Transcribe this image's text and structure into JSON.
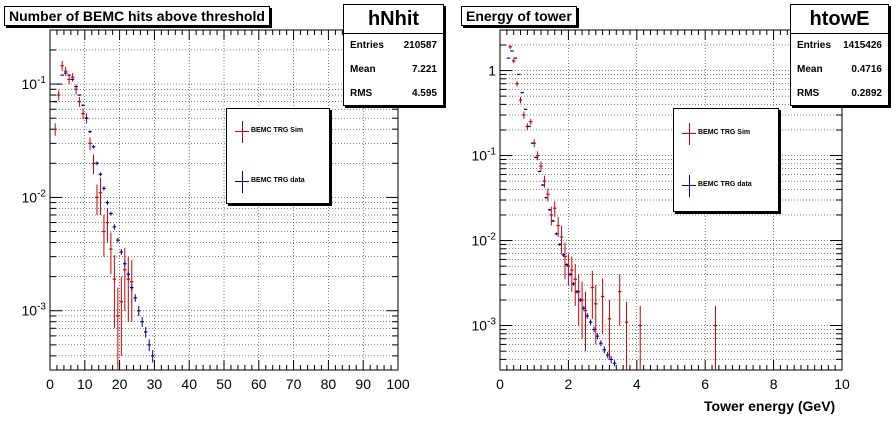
{
  "chart_data": [
    {
      "type": "scatter",
      "title": "Number of BEMC hits above threshold",
      "stats": {
        "name": "hNhit",
        "rows": [
          [
            "Entries",
            "210587"
          ],
          [
            "Mean",
            "7.221"
          ],
          [
            "RMS",
            "4.595"
          ]
        ]
      },
      "xlabel": "",
      "ylabel": "",
      "xlim": [
        0,
        100
      ],
      "ylim": [
        0.0003,
        0.3
      ],
      "yscale": "log",
      "grid": true,
      "x_ticks": [
        "0",
        "10",
        "20",
        "30",
        "40",
        "50",
        "60",
        "70",
        "80",
        "90",
        "100"
      ],
      "y_ticks": [
        "10^-3",
        "10^-2",
        "10^-1"
      ],
      "legend": {
        "placement": "center-right",
        "entries": [
          "BEMC TRG Sim",
          "BEMC TRG data"
        ]
      },
      "series": [
        {
          "name": "BEMC TRG Sim",
          "color": "#cc0000",
          "points": [
            [
              1.5,
              0.04,
              0.005
            ],
            [
              2.5,
              0.08,
              0.008
            ],
            [
              3.5,
              0.145,
              0.015
            ],
            [
              4.5,
              0.13,
              0.012
            ],
            [
              5.5,
              0.11,
              0.01
            ],
            [
              6.5,
              0.115,
              0.01
            ],
            [
              7.5,
              0.09,
              0.009
            ],
            [
              8.5,
              0.07,
              0.007
            ],
            [
              9.5,
              0.055,
              0.006
            ],
            [
              10.5,
              0.05,
              0.005
            ],
            [
              11.5,
              0.03,
              0.004
            ],
            [
              12.5,
              0.02,
              0.004
            ],
            [
              13.5,
              0.01,
              0.003
            ],
            [
              14.5,
              0.011,
              0.004
            ],
            [
              15.5,
              0.005,
              0.002
            ],
            [
              16.5,
              0.006,
              0.002
            ],
            [
              17.5,
              0.0035,
              0.0014
            ],
            [
              18.5,
              0.0019,
              0.0012
            ],
            [
              19.5,
              0.0009,
              0.0007
            ],
            [
              20.5,
              0.0012,
              0.0008
            ],
            [
              21.5,
              0.0023,
              0.0013
            ],
            [
              22.5,
              0.0019,
              0.0011
            ],
            [
              23.5,
              0.0018,
              0.001
            ]
          ]
        },
        {
          "name": "BEMC TRG data",
          "color": "#000099",
          "points": [
            [
              1.5,
              0.07,
              0.001
            ],
            [
              2.5,
              0.1,
              0.001
            ],
            [
              3.5,
              0.12,
              0.001
            ],
            [
              4.5,
              0.125,
              0.001
            ],
            [
              5.5,
              0.12,
              0.001
            ],
            [
              6.5,
              0.11,
              0.001
            ],
            [
              7.5,
              0.095,
              0.001
            ],
            [
              8.5,
              0.08,
              0.001
            ],
            [
              9.5,
              0.065,
              0.001
            ],
            [
              10.5,
              0.05,
              0.001
            ],
            [
              11.5,
              0.038,
              0.001
            ],
            [
              12.5,
              0.028,
              0.001
            ],
            [
              13.5,
              0.02,
              0.0008
            ],
            [
              14.5,
              0.016,
              0.0006
            ],
            [
              15.5,
              0.012,
              0.0005
            ],
            [
              16.5,
              0.009,
              0.0004
            ],
            [
              17.5,
              0.0072,
              0.0003
            ],
            [
              18.5,
              0.0055,
              0.0003
            ],
            [
              19.5,
              0.0042,
              0.0002
            ],
            [
              20.5,
              0.0033,
              0.0002
            ],
            [
              21.5,
              0.0026,
              0.00015
            ],
            [
              22.5,
              0.0021,
              0.00012
            ],
            [
              23.5,
              0.0016,
              0.0001
            ],
            [
              24.5,
              0.0013,
              0.0001
            ],
            [
              25.5,
              0.001,
              0.0001
            ],
            [
              26.5,
              0.0008,
              8e-05
            ],
            [
              27.5,
              0.00065,
              7e-05
            ],
            [
              28.5,
              0.0005,
              6e-05
            ],
            [
              29.5,
              0.0004,
              5e-05
            ]
          ]
        }
      ]
    },
    {
      "type": "scatter",
      "title": "Energy of tower",
      "stats": {
        "name": "htowE",
        "rows": [
          [
            "Entries",
            "1415426"
          ],
          [
            "Mean",
            "0.4716"
          ],
          [
            "RMS",
            "0.2892"
          ]
        ]
      },
      "xlabel": "Tower energy (GeV)",
      "ylabel": "",
      "xlim": [
        0,
        10
      ],
      "ylim": [
        0.0003,
        3
      ],
      "yscale": "log",
      "grid": true,
      "x_ticks": [
        "0",
        "2",
        "4",
        "6",
        "8",
        "10"
      ],
      "y_ticks": [
        "10^-3",
        "10^-2",
        "10^-1",
        "1"
      ],
      "legend": {
        "placement": "center-right",
        "entries": [
          "BEMC TRG Sim",
          "BEMC TRG data"
        ]
      },
      "series": [
        {
          "name": "BEMC TRG Sim",
          "color": "#cc0000",
          "points": [
            [
              0.3,
              1.9,
              0.1
            ],
            [
              0.4,
              1.3,
              0.08
            ],
            [
              0.5,
              0.7,
              0.05
            ],
            [
              0.6,
              0.45,
              0.04
            ],
            [
              0.7,
              0.3,
              0.03
            ],
            [
              0.8,
              0.22,
              0.02
            ],
            [
              0.9,
              0.25,
              0.02
            ],
            [
              1.0,
              0.14,
              0.015
            ],
            [
              1.1,
              0.1,
              0.012
            ],
            [
              1.2,
              0.075,
              0.01
            ],
            [
              1.3,
              0.05,
              0.008
            ],
            [
              1.4,
              0.035,
              0.006
            ],
            [
              1.5,
              0.02,
              0.005
            ],
            [
              1.6,
              0.024,
              0.005
            ],
            [
              1.7,
              0.015,
              0.004
            ],
            [
              1.8,
              0.011,
              0.004
            ],
            [
              1.9,
              0.0065,
              0.003
            ],
            [
              2.0,
              0.005,
              0.002
            ],
            [
              2.1,
              0.0045,
              0.002
            ],
            [
              2.2,
              0.0035,
              0.0018
            ],
            [
              2.3,
              0.0025,
              0.0015
            ],
            [
              2.4,
              0.002,
              0.0013
            ],
            [
              2.5,
              0.0015,
              0.001
            ],
            [
              2.7,
              0.0028,
              0.0016
            ],
            [
              2.8,
              0.0018,
              0.0012
            ],
            [
              3.0,
              0.0022,
              0.0014
            ],
            [
              3.2,
              0.0012,
              0.0008
            ],
            [
              3.5,
              0.0025,
              0.0015
            ],
            [
              3.7,
              0.0011,
              0.0008
            ],
            [
              4.1,
              0.001,
              0.0007
            ],
            [
              6.3,
              0.001,
              0.0007
            ]
          ]
        },
        {
          "name": "BEMC TRG data",
          "color": "#000099",
          "points": [
            [
              0.25,
              1.4,
              0.01
            ],
            [
              0.35,
              1.7,
              0.01
            ],
            [
              0.45,
              1.4,
              0.01
            ],
            [
              0.55,
              0.9,
              0.008
            ],
            [
              0.65,
              0.55,
              0.006
            ],
            [
              0.75,
              0.35,
              0.004
            ],
            [
              0.85,
              0.22,
              0.003
            ],
            [
              0.95,
              0.14,
              0.002
            ],
            [
              1.05,
              0.095,
              0.002
            ],
            [
              1.15,
              0.065,
              0.001
            ],
            [
              1.25,
              0.045,
              0.001
            ],
            [
              1.35,
              0.032,
              0.0008
            ],
            [
              1.45,
              0.023,
              0.0006
            ],
            [
              1.55,
              0.017,
              0.0005
            ],
            [
              1.65,
              0.012,
              0.0004
            ],
            [
              1.75,
              0.009,
              0.0003
            ],
            [
              1.85,
              0.0068,
              0.0003
            ],
            [
              1.95,
              0.0052,
              0.0002
            ],
            [
              2.05,
              0.004,
              0.0002
            ],
            [
              2.15,
              0.0031,
              0.00015
            ],
            [
              2.25,
              0.0025,
              0.00012
            ],
            [
              2.35,
              0.002,
              0.0001
            ],
            [
              2.45,
              0.0016,
              0.0001
            ],
            [
              2.55,
              0.0013,
              0.0001
            ],
            [
              2.65,
              0.0011,
              8e-05
            ],
            [
              2.75,
              0.0009,
              7e-05
            ],
            [
              2.85,
              0.00075,
              6e-05
            ],
            [
              2.95,
              0.00062,
              5e-05
            ],
            [
              3.05,
              0.00052,
              5e-05
            ],
            [
              3.15,
              0.00045,
              4e-05
            ],
            [
              3.25,
              0.0004,
              4e-05
            ],
            [
              3.35,
              0.00036,
              3e-05
            ]
          ]
        }
      ]
    }
  ]
}
